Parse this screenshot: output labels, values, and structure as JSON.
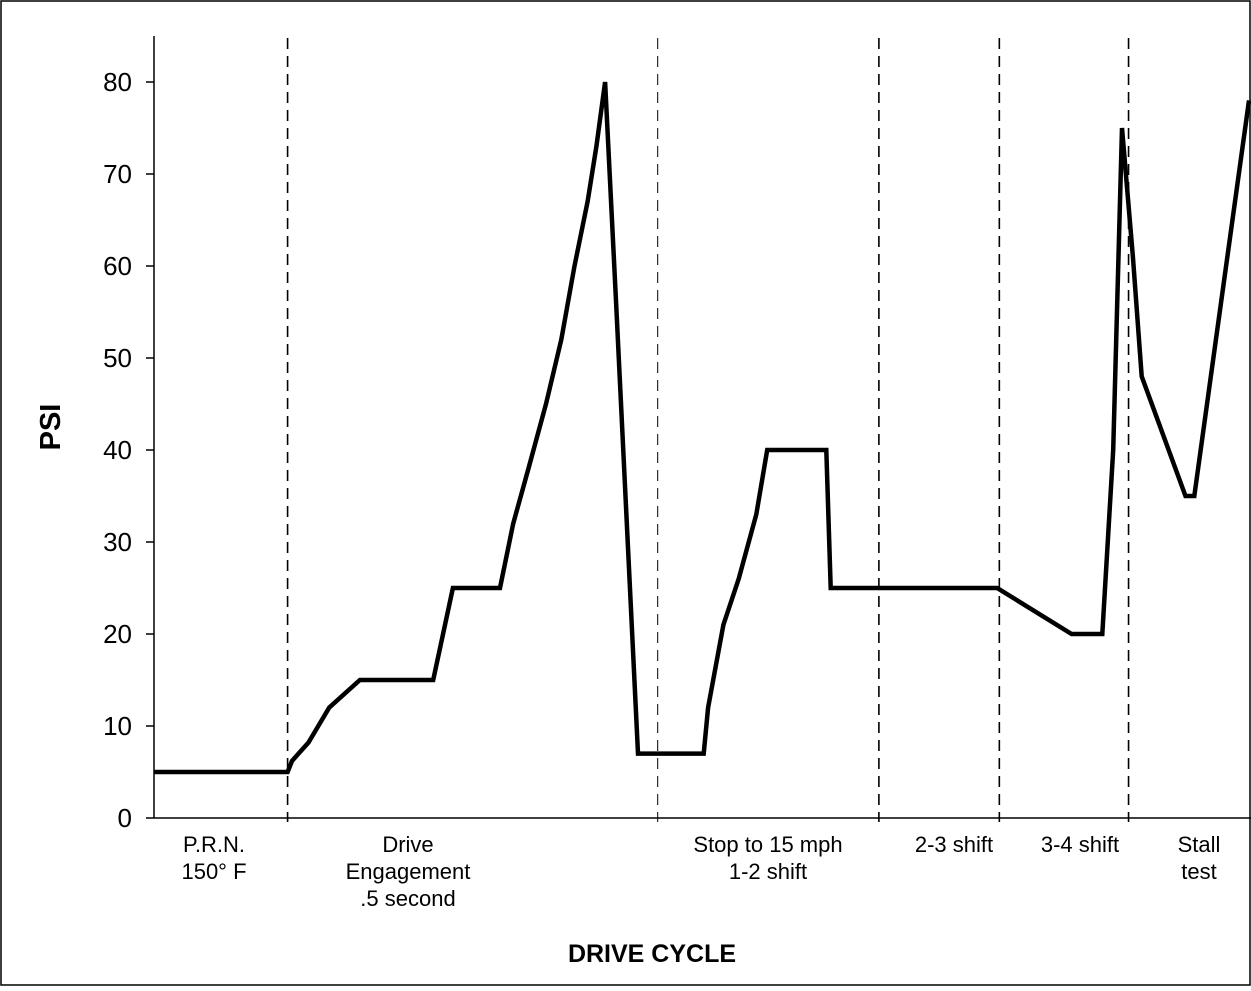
{
  "chart_data": {
    "type": "line",
    "ylabel": "PSI",
    "xlabel": "DRIVE CYCLE",
    "ylim": [
      0,
      85
    ],
    "yticks": [
      0,
      10,
      20,
      30,
      40,
      50,
      60,
      70,
      80
    ],
    "grid": false,
    "legend": "none",
    "line_color": "#000000",
    "segments": [
      {
        "lines": [
          "P.R.N.",
          "150° F"
        ]
      },
      {
        "lines": [
          "Drive",
          "Engagement",
          ".5 second"
        ]
      },
      {
        "lines": [
          "Stop to 15 mph",
          "1-2 shift"
        ]
      },
      {
        "lines": [
          "2-3 shift"
        ]
      },
      {
        "lines": [
          "3-4 shift"
        ]
      },
      {
        "lines": [
          "Stall",
          "test"
        ]
      }
    ],
    "series": [
      {
        "x": [
          0,
          12.2,
          12.6,
          13.2,
          14.1,
          15.0,
          16.0,
          18.8,
          25.5,
          27.3,
          31.6,
          32.8,
          34.2,
          35.8,
          37.2,
          38.4,
          39.6,
          40.4,
          41.2,
          42.2,
          44.2,
          50.2,
          50.6,
          52.0,
          53.4,
          55.0,
          56.0,
          57.6,
          58.4,
          61.4,
          61.8,
          62.8,
          65.7,
          76.2,
          77.0,
          83.8,
          84.4,
          85.8,
          86.6,
          87.6,
          88.4,
          89.4,
          90.2,
          94.2,
          94.6,
          95.0,
          100
        ],
        "y": [
          5,
          5,
          6.2,
          7.0,
          8.2,
          10,
          12,
          15,
          15,
          25,
          25,
          32,
          38,
          45,
          52,
          60,
          67,
          73,
          80,
          56,
          7,
          7,
          12,
          21,
          26,
          33,
          40,
          40,
          40,
          40,
          25,
          25,
          25,
          25,
          25,
          20,
          20,
          20,
          20,
          40,
          75,
          61,
          48,
          35,
          35,
          35,
          78
        ]
      }
    ],
    "dividers": [
      12.2,
      46.0,
      66.2,
      77.2,
      89.0
    ]
  }
}
